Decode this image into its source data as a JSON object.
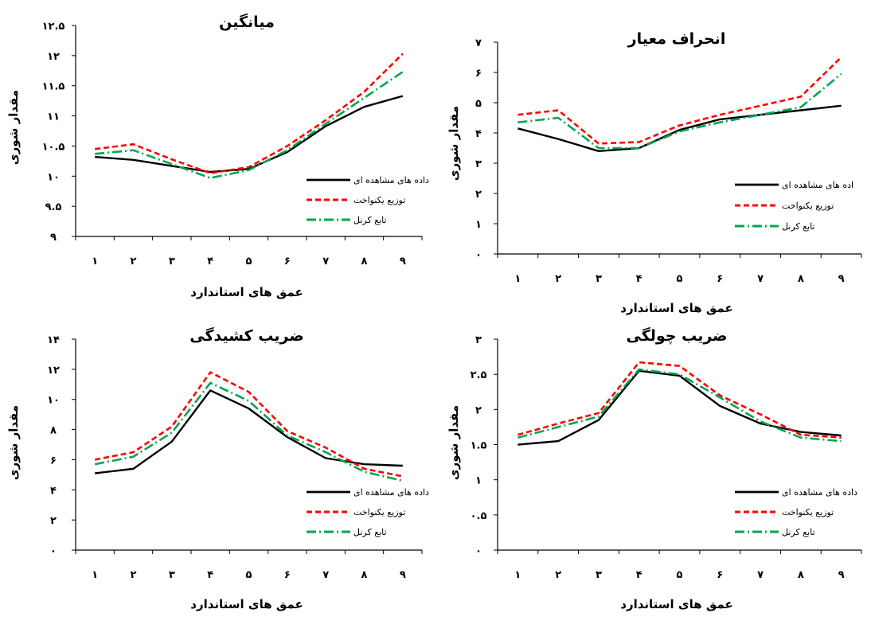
{
  "colors": {
    "observed": "#000000",
    "uniform": "#ff0000",
    "kernel": "#00a651",
    "axis": "#000000"
  },
  "chart_data": [
    {
      "type": "line",
      "title": "میانگین",
      "xlabel": "عمق های استاندارد",
      "ylabel": "مقدار شوری",
      "categories": [
        "۱",
        "۲",
        "۳",
        "۴",
        "۵",
        "۶",
        "۷",
        "۸",
        "۹"
      ],
      "ylim": [
        9,
        12.5
      ],
      "yticks": [
        9,
        9.5,
        10,
        10.5,
        11,
        11.5,
        12,
        12.5
      ],
      "ytick_labels": [
        "۹",
        "۹.۵",
        "۱۰",
        "۱۰.۵",
        "۱۱",
        "۱۱.۵",
        "۱۲",
        "۱۲.۵"
      ],
      "legend": "right",
      "series": [
        {
          "name": "داده های مشاهده ای",
          "values": [
            10.32,
            10.27,
            10.17,
            10.07,
            10.12,
            10.4,
            10.83,
            11.15,
            11.33
          ]
        },
        {
          "name": "توزیع یکنواخت",
          "values": [
            10.45,
            10.53,
            10.28,
            10.05,
            10.15,
            10.5,
            10.93,
            11.4,
            12.03
          ]
        },
        {
          "name": "تابع کرنل",
          "values": [
            10.37,
            10.43,
            10.2,
            9.97,
            10.1,
            10.43,
            10.87,
            11.3,
            11.73
          ]
        }
      ]
    },
    {
      "type": "line",
      "title": "انحراف معیار",
      "xlabel": "عمق های استاندارد",
      "ylabel": "مقدار شوری",
      "categories": [
        "۱",
        "۲",
        "۳",
        "۴",
        "۵",
        "۶",
        "۷",
        "۸",
        "۹"
      ],
      "ylim": [
        0,
        7
      ],
      "yticks": [
        0,
        1,
        2,
        3,
        4,
        5,
        6,
        7
      ],
      "ytick_labels": [
        "۰",
        "۱",
        "۲",
        "۳",
        "۴",
        "۵",
        "۶",
        "۷"
      ],
      "legend": "right",
      "series": [
        {
          "name": "اده های مشاهده ای",
          "values": [
            4.15,
            3.8,
            3.4,
            3.5,
            4.1,
            4.45,
            4.6,
            4.75,
            4.9
          ]
        },
        {
          "name": "توزیع یکنواخت",
          "values": [
            4.6,
            4.75,
            3.65,
            3.7,
            4.25,
            4.6,
            4.9,
            5.2,
            6.5
          ]
        },
        {
          "name": "تابع کرنل",
          "values": [
            4.35,
            4.5,
            3.5,
            3.5,
            4.05,
            4.35,
            4.6,
            4.85,
            5.95
          ]
        }
      ]
    },
    {
      "type": "line",
      "title": "ضریب کشیدگی",
      "xlabel": "عمق های استاندارد",
      "ylabel": "مقدار شوری",
      "categories": [
        "۱",
        "۲",
        "۳",
        "۴",
        "۵",
        "۶",
        "۷",
        "۸",
        "۹"
      ],
      "ylim": [
        0,
        14
      ],
      "yticks": [
        0,
        2,
        4,
        6,
        8,
        10,
        12,
        14
      ],
      "ytick_labels": [
        "۰",
        "۲",
        "۴",
        "۶",
        "۸",
        "۱۰",
        "۱۲",
        "۱۴"
      ],
      "legend": "right",
      "series": [
        {
          "name": "داده های مشاهده ای",
          "values": [
            5.1,
            5.4,
            7.2,
            10.6,
            9.4,
            7.5,
            6.1,
            5.7,
            5.6
          ]
        },
        {
          "name": "توزیع یکنواخت",
          "values": [
            6.0,
            6.5,
            8.2,
            11.8,
            10.5,
            7.9,
            6.8,
            5.4,
            4.9
          ]
        },
        {
          "name": "تابع کرنل",
          "values": [
            5.7,
            6.2,
            7.8,
            11.1,
            9.9,
            7.6,
            6.5,
            5.2,
            4.6
          ]
        }
      ]
    },
    {
      "type": "line",
      "title": "ضریب چولگی",
      "xlabel": "عمق های استاندارد",
      "ylabel": "مقدار شوری",
      "categories": [
        "۱",
        "۲",
        "۳",
        "۴",
        "۵",
        "۶",
        "۷",
        "۸",
        "۹"
      ],
      "ylim": [
        0,
        3
      ],
      "yticks": [
        0,
        0.5,
        1,
        1.5,
        2,
        2.5,
        3
      ],
      "ytick_labels": [
        "۰",
        "۰.۵",
        "۱",
        "۱.۵",
        "۲",
        "۲.۵",
        "۳"
      ],
      "legend": "right",
      "series": [
        {
          "name": "داده های مشاهده ای",
          "values": [
            1.5,
            1.55,
            1.85,
            2.55,
            2.48,
            2.05,
            1.8,
            1.68,
            1.63
          ]
        },
        {
          "name": "توزیع یکنواخت",
          "values": [
            1.64,
            1.8,
            1.95,
            2.67,
            2.62,
            2.2,
            1.93,
            1.64,
            1.6
          ]
        },
        {
          "name": "تابع کرنل",
          "values": [
            1.6,
            1.75,
            1.9,
            2.57,
            2.5,
            2.17,
            1.83,
            1.6,
            1.55
          ]
        }
      ]
    }
  ]
}
